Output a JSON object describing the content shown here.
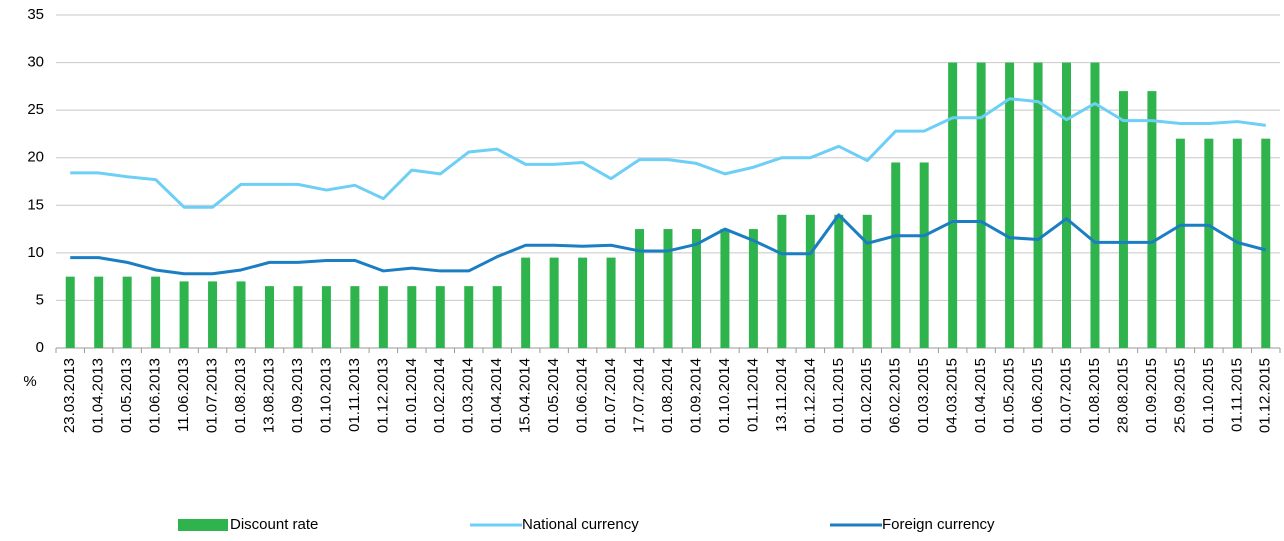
{
  "chart_data": {
    "type": "bar_line",
    "y_label": "%",
    "categories": [
      "23.03.2013",
      "01.04.2013",
      "01.05.2013",
      "01.06.2013",
      "11.06.2013",
      "01.07.2013",
      "01.08.2013",
      "13.08.2013",
      "01.09.2013",
      "01.10.2013",
      "01.11.2013",
      "01.12.2013",
      "01.01.2014",
      "01.02.2014",
      "01.03.2014",
      "01.04.2014",
      "15.04.2014",
      "01.05.2014",
      "01.06.2014",
      "01.07.2014",
      "17.07.2014",
      "01.08.2014",
      "01.09.2014",
      "01.10.2014",
      "01.11.2014",
      "13.11.2014",
      "01.12.2014",
      "01.01.2015",
      "01.02.2015",
      "06.02.2015",
      "01.03.2015",
      "04.03.2015",
      "01.04.2015",
      "01.05.2015",
      "01.06.2015",
      "01.07.2015",
      "01.08.2015",
      "28.08.2015",
      "01.09.2015",
      "25.09.2015",
      "01.10.2015",
      "01.11.2015",
      "01.12.2015"
    ],
    "series": [
      {
        "name": "Discount rate",
        "type": "bar",
        "color": "#2fb34c",
        "values": [
          7.5,
          7.5,
          7.5,
          7.5,
          7,
          7,
          7,
          6.5,
          6.5,
          6.5,
          6.5,
          6.5,
          6.5,
          6.5,
          6.5,
          6.5,
          9.5,
          9.5,
          9.5,
          9.5,
          12.5,
          12.5,
          12.5,
          12.5,
          12.5,
          14,
          14,
          14,
          14,
          19.5,
          19.5,
          30,
          30,
          30,
          30,
          30,
          30,
          27,
          27,
          22,
          22,
          22,
          22
        ]
      },
      {
        "name": "National currency",
        "type": "line",
        "color": "#6dcff6",
        "values": [
          18.4,
          18.4,
          18.0,
          17.7,
          14.8,
          14.8,
          17.2,
          17.2,
          17.2,
          16.6,
          17.1,
          15.7,
          18.7,
          18.3,
          20.6,
          20.9,
          19.3,
          19.3,
          19.5,
          17.8,
          19.8,
          19.8,
          19.4,
          18.3,
          19.0,
          20.0,
          20.0,
          21.2,
          19.7,
          22.8,
          22.8,
          24.2,
          24.2,
          26.2,
          25.9,
          24.0,
          25.7,
          23.9,
          23.9,
          23.6,
          23.6,
          23.8,
          23.4
        ]
      },
      {
        "name": "Foreign currency",
        "type": "line",
        "color": "#1b7ec2",
        "values": [
          9.5,
          9.5,
          9.0,
          8.2,
          7.8,
          7.8,
          8.2,
          9.0,
          9.0,
          9.2,
          9.2,
          8.1,
          8.4,
          8.1,
          8.1,
          9.6,
          10.8,
          10.8,
          10.7,
          10.8,
          10.2,
          10.2,
          10.9,
          12.5,
          11.3,
          9.9,
          9.9,
          14.0,
          11.0,
          11.8,
          11.8,
          13.3,
          13.3,
          11.6,
          11.4,
          13.6,
          11.1,
          11.1,
          11.1,
          12.9,
          12.9,
          11.1,
          10.3
        ]
      }
    ],
    "ylim": [
      0,
      35
    ],
    "yticks": [
      0,
      5,
      10,
      15,
      20,
      25,
      30,
      35
    ],
    "grid": true
  }
}
